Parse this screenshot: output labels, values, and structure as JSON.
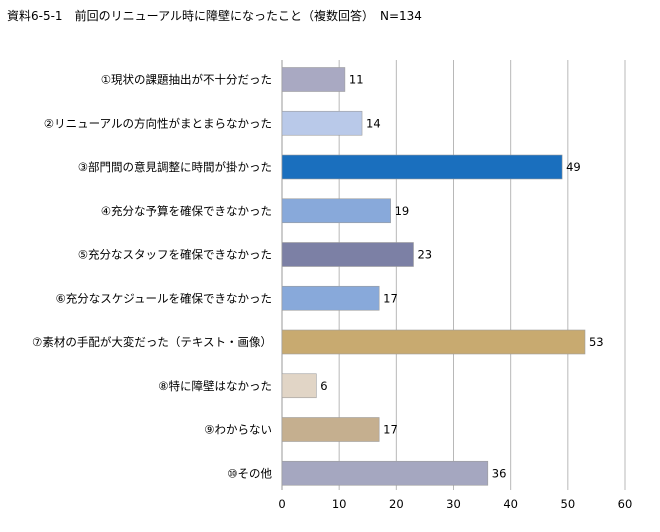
{
  "chart_data": {
    "type": "bar",
    "orientation": "horizontal",
    "title": "資料6-5-1　前回のリニューアル時に障壁になったこと（複数回答）　N=134",
    "categories": [
      "①現状の課題抽出が不十分だった",
      "②リニューアルの方向性がまとまらなかった",
      "③部門間の意見調整に時間が掛かった",
      "④充分な予算を確保できなかった",
      "⑤充分なスタッフを確保できなかった",
      "⑥充分なスケジュールを確保できなかった",
      "⑦素材の手配が大変だった（テキスト・画像）",
      "⑧特に障壁はなかった",
      "⑨わからない",
      "⑩その他"
    ],
    "values": [
      11,
      14,
      49,
      19,
      23,
      17,
      53,
      6,
      17,
      36
    ],
    "colors": [
      "#a9a9c2",
      "#b9c9e9",
      "#1a6fbe",
      "#88a9da",
      "#7c80a5",
      "#88a9da",
      "#c8aa70",
      "#e1d5c6",
      "#c5af8f",
      "#a5a7c0"
    ],
    "xlim": [
      0,
      60
    ],
    "xticks": [
      "0",
      "10",
      "20",
      "30",
      "40",
      "50",
      "60"
    ],
    "grid": true,
    "xlabel": "",
    "ylabel": ""
  }
}
